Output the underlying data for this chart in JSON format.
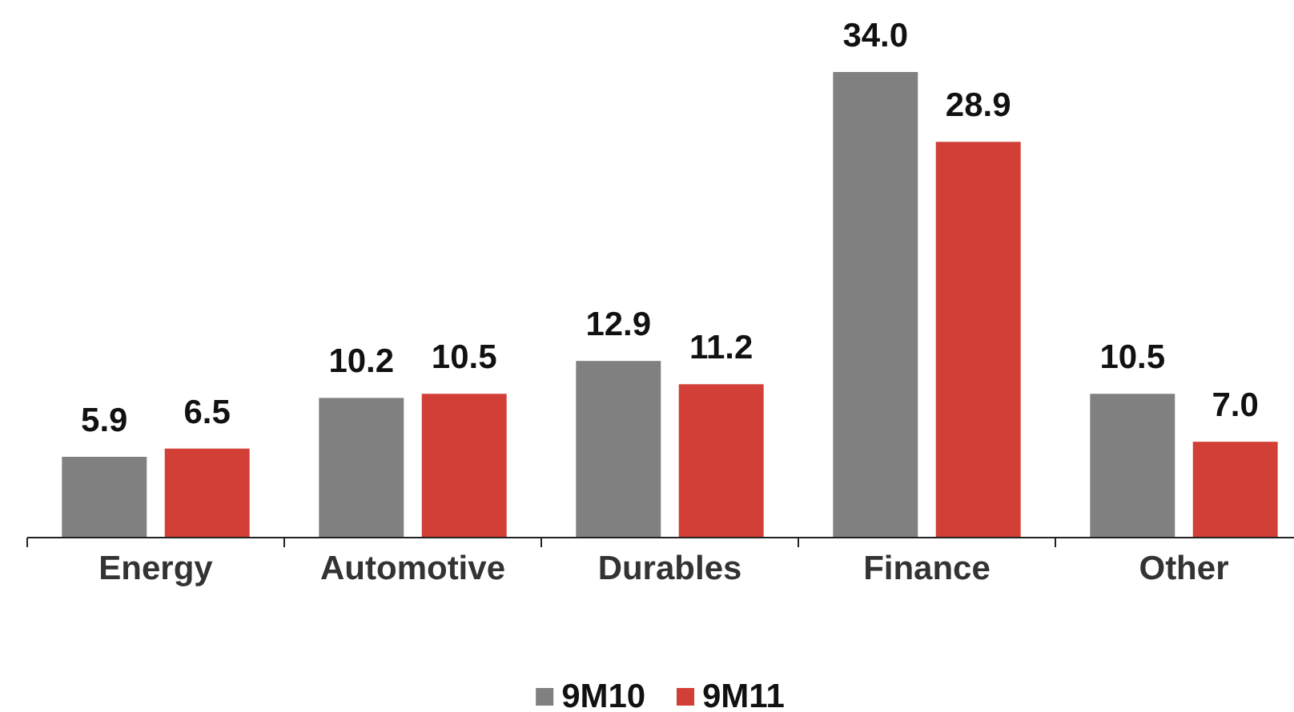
{
  "chart_data": {
    "type": "bar",
    "categories": [
      "Energy",
      "Automotive",
      "Durables",
      "Finance",
      "Other"
    ],
    "series": [
      {
        "name": "9M10",
        "color": "#808080",
        "values": [
          5.9,
          10.2,
          12.9,
          34.0,
          10.5
        ],
        "value_labels": [
          "5.9",
          "10.2",
          "12.9",
          "34.0",
          "10.5"
        ]
      },
      {
        "name": "9M11",
        "color": "#d13f37",
        "values": [
          6.5,
          10.5,
          11.2,
          28.9,
          7.0
        ],
        "value_labels": [
          "6.5",
          "10.5",
          "11.2",
          "28.9",
          "7.0"
        ]
      }
    ],
    "legend": "bottom"
  }
}
